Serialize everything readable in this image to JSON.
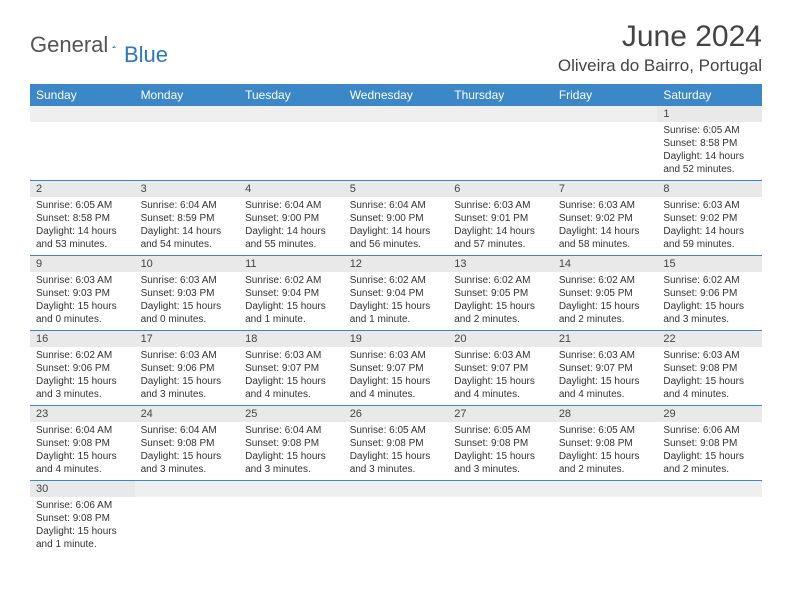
{
  "logo": {
    "general": "General",
    "blue": "Blue",
    "sail_color": "#2f77bb"
  },
  "title": "June 2024",
  "location": "Oliveira do Bairro, Portugal",
  "colors": {
    "header_bg": "#3b87c8",
    "header_fg": "#ffffff",
    "daynum_bg": "#e9e9e9",
    "row_border": "#3b87c8"
  },
  "weekdays": [
    "Sunday",
    "Monday",
    "Tuesday",
    "Wednesday",
    "Thursday",
    "Friday",
    "Saturday"
  ],
  "weeks": [
    [
      {
        "blank": true
      },
      {
        "blank": true
      },
      {
        "blank": true
      },
      {
        "blank": true
      },
      {
        "blank": true
      },
      {
        "blank": true
      },
      {
        "num": "1",
        "sunrise": "Sunrise: 6:05 AM",
        "sunset": "Sunset: 8:58 PM",
        "daylight": "Daylight: 14 hours and 52 minutes."
      }
    ],
    [
      {
        "num": "2",
        "sunrise": "Sunrise: 6:05 AM",
        "sunset": "Sunset: 8:58 PM",
        "daylight": "Daylight: 14 hours and 53 minutes."
      },
      {
        "num": "3",
        "sunrise": "Sunrise: 6:04 AM",
        "sunset": "Sunset: 8:59 PM",
        "daylight": "Daylight: 14 hours and 54 minutes."
      },
      {
        "num": "4",
        "sunrise": "Sunrise: 6:04 AM",
        "sunset": "Sunset: 9:00 PM",
        "daylight": "Daylight: 14 hours and 55 minutes."
      },
      {
        "num": "5",
        "sunrise": "Sunrise: 6:04 AM",
        "sunset": "Sunset: 9:00 PM",
        "daylight": "Daylight: 14 hours and 56 minutes."
      },
      {
        "num": "6",
        "sunrise": "Sunrise: 6:03 AM",
        "sunset": "Sunset: 9:01 PM",
        "daylight": "Daylight: 14 hours and 57 minutes."
      },
      {
        "num": "7",
        "sunrise": "Sunrise: 6:03 AM",
        "sunset": "Sunset: 9:02 PM",
        "daylight": "Daylight: 14 hours and 58 minutes."
      },
      {
        "num": "8",
        "sunrise": "Sunrise: 6:03 AM",
        "sunset": "Sunset: 9:02 PM",
        "daylight": "Daylight: 14 hours and 59 minutes."
      }
    ],
    [
      {
        "num": "9",
        "sunrise": "Sunrise: 6:03 AM",
        "sunset": "Sunset: 9:03 PM",
        "daylight": "Daylight: 15 hours and 0 minutes."
      },
      {
        "num": "10",
        "sunrise": "Sunrise: 6:03 AM",
        "sunset": "Sunset: 9:03 PM",
        "daylight": "Daylight: 15 hours and 0 minutes."
      },
      {
        "num": "11",
        "sunrise": "Sunrise: 6:02 AM",
        "sunset": "Sunset: 9:04 PM",
        "daylight": "Daylight: 15 hours and 1 minute."
      },
      {
        "num": "12",
        "sunrise": "Sunrise: 6:02 AM",
        "sunset": "Sunset: 9:04 PM",
        "daylight": "Daylight: 15 hours and 1 minute."
      },
      {
        "num": "13",
        "sunrise": "Sunrise: 6:02 AM",
        "sunset": "Sunset: 9:05 PM",
        "daylight": "Daylight: 15 hours and 2 minutes."
      },
      {
        "num": "14",
        "sunrise": "Sunrise: 6:02 AM",
        "sunset": "Sunset: 9:05 PM",
        "daylight": "Daylight: 15 hours and 2 minutes."
      },
      {
        "num": "15",
        "sunrise": "Sunrise: 6:02 AM",
        "sunset": "Sunset: 9:06 PM",
        "daylight": "Daylight: 15 hours and 3 minutes."
      }
    ],
    [
      {
        "num": "16",
        "sunrise": "Sunrise: 6:02 AM",
        "sunset": "Sunset: 9:06 PM",
        "daylight": "Daylight: 15 hours and 3 minutes."
      },
      {
        "num": "17",
        "sunrise": "Sunrise: 6:03 AM",
        "sunset": "Sunset: 9:06 PM",
        "daylight": "Daylight: 15 hours and 3 minutes."
      },
      {
        "num": "18",
        "sunrise": "Sunrise: 6:03 AM",
        "sunset": "Sunset: 9:07 PM",
        "daylight": "Daylight: 15 hours and 4 minutes."
      },
      {
        "num": "19",
        "sunrise": "Sunrise: 6:03 AM",
        "sunset": "Sunset: 9:07 PM",
        "daylight": "Daylight: 15 hours and 4 minutes."
      },
      {
        "num": "20",
        "sunrise": "Sunrise: 6:03 AM",
        "sunset": "Sunset: 9:07 PM",
        "daylight": "Daylight: 15 hours and 4 minutes."
      },
      {
        "num": "21",
        "sunrise": "Sunrise: 6:03 AM",
        "sunset": "Sunset: 9:07 PM",
        "daylight": "Daylight: 15 hours and 4 minutes."
      },
      {
        "num": "22",
        "sunrise": "Sunrise: 6:03 AM",
        "sunset": "Sunset: 9:08 PM",
        "daylight": "Daylight: 15 hours and 4 minutes."
      }
    ],
    [
      {
        "num": "23",
        "sunrise": "Sunrise: 6:04 AM",
        "sunset": "Sunset: 9:08 PM",
        "daylight": "Daylight: 15 hours and 4 minutes."
      },
      {
        "num": "24",
        "sunrise": "Sunrise: 6:04 AM",
        "sunset": "Sunset: 9:08 PM",
        "daylight": "Daylight: 15 hours and 3 minutes."
      },
      {
        "num": "25",
        "sunrise": "Sunrise: 6:04 AM",
        "sunset": "Sunset: 9:08 PM",
        "daylight": "Daylight: 15 hours and 3 minutes."
      },
      {
        "num": "26",
        "sunrise": "Sunrise: 6:05 AM",
        "sunset": "Sunset: 9:08 PM",
        "daylight": "Daylight: 15 hours and 3 minutes."
      },
      {
        "num": "27",
        "sunrise": "Sunrise: 6:05 AM",
        "sunset": "Sunset: 9:08 PM",
        "daylight": "Daylight: 15 hours and 3 minutes."
      },
      {
        "num": "28",
        "sunrise": "Sunrise: 6:05 AM",
        "sunset": "Sunset: 9:08 PM",
        "daylight": "Daylight: 15 hours and 2 minutes."
      },
      {
        "num": "29",
        "sunrise": "Sunrise: 6:06 AM",
        "sunset": "Sunset: 9:08 PM",
        "daylight": "Daylight: 15 hours and 2 minutes."
      }
    ],
    [
      {
        "num": "30",
        "sunrise": "Sunrise: 6:06 AM",
        "sunset": "Sunset: 9:08 PM",
        "daylight": "Daylight: 15 hours and 1 minute."
      },
      {
        "blank": true
      },
      {
        "blank": true
      },
      {
        "blank": true
      },
      {
        "blank": true
      },
      {
        "blank": true
      },
      {
        "blank": true
      }
    ]
  ]
}
